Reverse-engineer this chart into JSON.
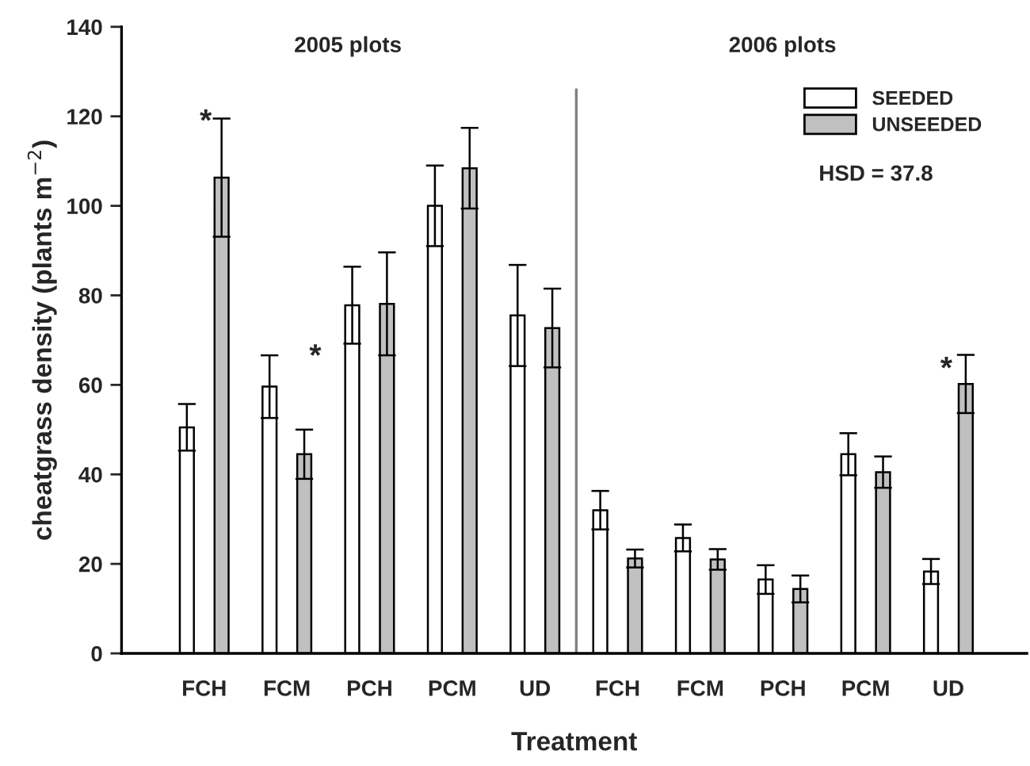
{
  "chart_data": {
    "type": "bar",
    "xlabel": "Treatment",
    "ylabel": "cheatgrass density (plants m$^{−2}$)",
    "categories": [
      "FCH",
      "FCM",
      "PCH",
      "PCM",
      "UD",
      "FCH",
      "FCM",
      "PCH",
      "PCM",
      "UD"
    ],
    "series": [
      {
        "name": "SEEDED",
        "color": "#ffffff",
        "values": [
          50.5,
          59.6,
          77.8,
          100,
          75.5,
          32,
          25.8,
          16.5,
          44.5,
          18.3
        ],
        "errors": [
          5.2,
          7,
          8.6,
          9,
          11.3,
          4.3,
          3,
          3.2,
          4.7,
          2.8
        ]
      },
      {
        "name": "UNSEEDED",
        "color": "#c0c0c0",
        "values": [
          106.3,
          44.5,
          78.1,
          108.4,
          72.7,
          21.2,
          21,
          14.4,
          40.5,
          60.2
        ],
        "errors": [
          13.2,
          5.5,
          11.5,
          9,
          8.8,
          2,
          2.3,
          3,
          3.5,
          6.5
        ]
      }
    ],
    "ylim": [
      0,
      140
    ],
    "yticks": [
      0,
      20,
      40,
      60,
      80,
      100,
      120,
      140
    ],
    "annotations": [
      "2005 plots",
      "2006 plots",
      "HSD = 37.8",
      "*",
      "*",
      "*"
    ],
    "legend": "top right",
    "grid": false
  }
}
